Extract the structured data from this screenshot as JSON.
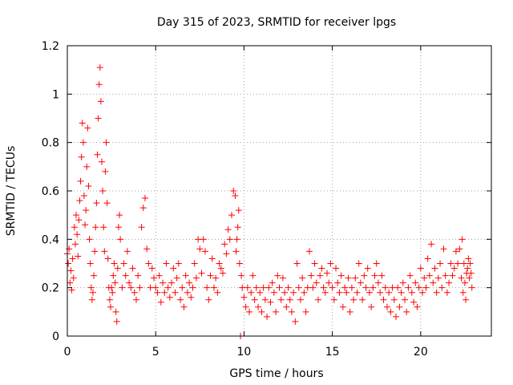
{
  "chart_data": {
    "type": "scatter",
    "title": "Day 315 of 2023, SRMTID for receiver lpgs",
    "xlabel": "GPS time / hours",
    "ylabel": "SRMTID / TECUs",
    "xlim": [
      0,
      24
    ],
    "ylim": [
      0,
      1.2
    ],
    "xticks": [
      0,
      5,
      10,
      15,
      20
    ],
    "yticks": [
      0,
      0.2,
      0.4,
      0.6,
      0.8,
      1,
      1.2
    ],
    "xtick_labels": [
      "0",
      "5",
      "10",
      "15",
      "20"
    ],
    "ytick_labels": [
      "0",
      "0.2",
      "0.4",
      "0.6",
      "0.8",
      "1",
      "1.2"
    ],
    "grid": true,
    "marker": "+",
    "marker_color": "#ff0000",
    "series": [
      {
        "name": "SRMTID",
        "points": [
          [
            0.0,
            0.34
          ],
          [
            0.05,
            0.3
          ],
          [
            0.1,
            0.36
          ],
          [
            0.15,
            0.22
          ],
          [
            0.2,
            0.27
          ],
          [
            0.25,
            0.19
          ],
          [
            0.3,
            0.32
          ],
          [
            0.35,
            0.24
          ],
          [
            0.4,
            0.45
          ],
          [
            0.45,
            0.38
          ],
          [
            0.5,
            0.5
          ],
          [
            0.55,
            0.42
          ],
          [
            0.6,
            0.33
          ],
          [
            0.65,
            0.48
          ],
          [
            0.7,
            0.56
          ],
          [
            0.75,
            0.64
          ],
          [
            0.8,
            0.74
          ],
          [
            0.85,
            0.88
          ],
          [
            0.9,
            0.8
          ],
          [
            0.95,
            0.58
          ],
          [
            1.0,
            0.46
          ],
          [
            1.05,
            0.52
          ],
          [
            1.1,
            0.7
          ],
          [
            1.15,
            0.86
          ],
          [
            1.2,
            0.62
          ],
          [
            1.25,
            0.4
          ],
          [
            1.3,
            0.3
          ],
          [
            1.35,
            0.2
          ],
          [
            1.4,
            0.15
          ],
          [
            1.45,
            0.18
          ],
          [
            1.5,
            0.25
          ],
          [
            1.55,
            0.35
          ],
          [
            1.6,
            0.45
          ],
          [
            1.65,
            0.55
          ],
          [
            1.7,
            0.75
          ],
          [
            1.75,
            0.9
          ],
          [
            1.8,
            1.04
          ],
          [
            1.85,
            1.11
          ],
          [
            1.9,
            0.97
          ],
          [
            1.95,
            0.72
          ],
          [
            2.0,
            0.6
          ],
          [
            2.05,
            0.45
          ],
          [
            2.1,
            0.35
          ],
          [
            2.15,
            0.68
          ],
          [
            2.2,
            0.8
          ],
          [
            2.25,
            0.55
          ],
          [
            2.3,
            0.32
          ],
          [
            2.35,
            0.2
          ],
          [
            2.4,
            0.15
          ],
          [
            2.45,
            0.12
          ],
          [
            2.5,
            0.2
          ],
          [
            2.55,
            0.18
          ],
          [
            2.6,
            0.25
          ],
          [
            2.65,
            0.3
          ],
          [
            2.7,
            0.22
          ],
          [
            2.75,
            0.1
          ],
          [
            2.8,
            0.06
          ],
          [
            2.85,
            0.28
          ],
          [
            2.9,
            0.45
          ],
          [
            2.95,
            0.5
          ],
          [
            3.0,
            0.4
          ],
          [
            3.1,
            0.2
          ],
          [
            3.2,
            0.3
          ],
          [
            3.3,
            0.25
          ],
          [
            3.4,
            0.35
          ],
          [
            3.5,
            0.22
          ],
          [
            3.6,
            0.2
          ],
          [
            3.7,
            0.28
          ],
          [
            3.8,
            0.18
          ],
          [
            3.9,
            0.15
          ],
          [
            4.0,
            0.25
          ],
          [
            4.1,
            0.2
          ],
          [
            4.2,
            0.45
          ],
          [
            4.3,
            0.53
          ],
          [
            4.4,
            0.57
          ],
          [
            4.5,
            0.36
          ],
          [
            4.6,
            0.3
          ],
          [
            4.7,
            0.2
          ],
          [
            4.8,
            0.28
          ],
          [
            4.9,
            0.24
          ],
          [
            5.0,
            0.2
          ],
          [
            5.1,
            0.18
          ],
          [
            5.2,
            0.25
          ],
          [
            5.3,
            0.14
          ],
          [
            5.4,
            0.22
          ],
          [
            5.5,
            0.18
          ],
          [
            5.6,
            0.3
          ],
          [
            5.7,
            0.2
          ],
          [
            5.8,
            0.16
          ],
          [
            5.9,
            0.22
          ],
          [
            6.0,
            0.28
          ],
          [
            6.1,
            0.18
          ],
          [
            6.2,
            0.24
          ],
          [
            6.3,
            0.3
          ],
          [
            6.4,
            0.15
          ],
          [
            6.5,
            0.2
          ],
          [
            6.6,
            0.12
          ],
          [
            6.7,
            0.25
          ],
          [
            6.8,
            0.18
          ],
          [
            6.9,
            0.22
          ],
          [
            7.0,
            0.16
          ],
          [
            7.1,
            0.2
          ],
          [
            7.2,
            0.3
          ],
          [
            7.3,
            0.24
          ],
          [
            7.4,
            0.4
          ],
          [
            7.5,
            0.36
          ],
          [
            7.6,
            0.26
          ],
          [
            7.7,
            0.4
          ],
          [
            7.8,
            0.35
          ],
          [
            7.9,
            0.2
          ],
          [
            8.0,
            0.15
          ],
          [
            8.1,
            0.25
          ],
          [
            8.2,
            0.32
          ],
          [
            8.3,
            0.2
          ],
          [
            8.4,
            0.24
          ],
          [
            8.5,
            0.18
          ],
          [
            8.6,
            0.3
          ],
          [
            8.7,
            0.28
          ],
          [
            8.8,
            0.26
          ],
          [
            8.9,
            0.38
          ],
          [
            9.0,
            0.34
          ],
          [
            9.1,
            0.44
          ],
          [
            9.2,
            0.4
          ],
          [
            9.3,
            0.5
          ],
          [
            9.4,
            0.6
          ],
          [
            9.5,
            0.58
          ],
          [
            9.55,
            0.35
          ],
          [
            9.6,
            0.4
          ],
          [
            9.65,
            0.45
          ],
          [
            9.7,
            0.52
          ],
          [
            9.75,
            0.3
          ],
          [
            9.8,
            0.0
          ],
          [
            9.85,
            0.25
          ],
          [
            9.9,
            0.2
          ],
          [
            10.0,
            0.16
          ],
          [
            10.1,
            0.12
          ],
          [
            10.2,
            0.2
          ],
          [
            10.3,
            0.1
          ],
          [
            10.4,
            0.18
          ],
          [
            10.5,
            0.25
          ],
          [
            10.6,
            0.15
          ],
          [
            10.7,
            0.2
          ],
          [
            10.8,
            0.12
          ],
          [
            10.9,
            0.18
          ],
          [
            11.0,
            0.1
          ],
          [
            11.1,
            0.2
          ],
          [
            11.2,
            0.15
          ],
          [
            11.3,
            0.08
          ],
          [
            11.4,
            0.2
          ],
          [
            11.5,
            0.14
          ],
          [
            11.6,
            0.22
          ],
          [
            11.7,
            0.18
          ],
          [
            11.8,
            0.1
          ],
          [
            11.9,
            0.25
          ],
          [
            12.0,
            0.2
          ],
          [
            12.1,
            0.15
          ],
          [
            12.2,
            0.24
          ],
          [
            12.3,
            0.18
          ],
          [
            12.4,
            0.12
          ],
          [
            12.5,
            0.2
          ],
          [
            12.6,
            0.15
          ],
          [
            12.7,
            0.1
          ],
          [
            12.8,
            0.18
          ],
          [
            12.9,
            0.06
          ],
          [
            13.0,
            0.3
          ],
          [
            13.1,
            0.2
          ],
          [
            13.2,
            0.15
          ],
          [
            13.3,
            0.24
          ],
          [
            13.4,
            0.18
          ],
          [
            13.5,
            0.1
          ],
          [
            13.6,
            0.2
          ],
          [
            13.7,
            0.35
          ],
          [
            13.8,
            0.25
          ],
          [
            13.9,
            0.2
          ],
          [
            14.0,
            0.3
          ],
          [
            14.1,
            0.22
          ],
          [
            14.2,
            0.15
          ],
          [
            14.3,
            0.25
          ],
          [
            14.4,
            0.28
          ],
          [
            14.5,
            0.2
          ],
          [
            14.6,
            0.18
          ],
          [
            14.7,
            0.26
          ],
          [
            14.8,
            0.22
          ],
          [
            14.9,
            0.3
          ],
          [
            15.0,
            0.2
          ],
          [
            15.1,
            0.15
          ],
          [
            15.2,
            0.28
          ],
          [
            15.3,
            0.22
          ],
          [
            15.4,
            0.18
          ],
          [
            15.5,
            0.25
          ],
          [
            15.6,
            0.12
          ],
          [
            15.7,
            0.2
          ],
          [
            15.8,
            0.18
          ],
          [
            15.9,
            0.24
          ],
          [
            16.0,
            0.1
          ],
          [
            16.1,
            0.2
          ],
          [
            16.2,
            0.15
          ],
          [
            16.3,
            0.24
          ],
          [
            16.4,
            0.18
          ],
          [
            16.5,
            0.3
          ],
          [
            16.6,
            0.22
          ],
          [
            16.7,
            0.15
          ],
          [
            16.8,
            0.25
          ],
          [
            16.9,
            0.2
          ],
          [
            17.0,
            0.28
          ],
          [
            17.1,
            0.18
          ],
          [
            17.2,
            0.12
          ],
          [
            17.3,
            0.2
          ],
          [
            17.4,
            0.25
          ],
          [
            17.5,
            0.3
          ],
          [
            17.6,
            0.22
          ],
          [
            17.7,
            0.18
          ],
          [
            17.8,
            0.25
          ],
          [
            17.9,
            0.15
          ],
          [
            18.0,
            0.2
          ],
          [
            18.1,
            0.12
          ],
          [
            18.2,
            0.18
          ],
          [
            18.3,
            0.1
          ],
          [
            18.4,
            0.2
          ],
          [
            18.5,
            0.15
          ],
          [
            18.6,
            0.08
          ],
          [
            18.7,
            0.2
          ],
          [
            18.8,
            0.12
          ],
          [
            18.9,
            0.18
          ],
          [
            19.0,
            0.22
          ],
          [
            19.1,
            0.15
          ],
          [
            19.2,
            0.1
          ],
          [
            19.3,
            0.2
          ],
          [
            19.4,
            0.25
          ],
          [
            19.5,
            0.18
          ],
          [
            19.6,
            0.14
          ],
          [
            19.7,
            0.22
          ],
          [
            19.8,
            0.12
          ],
          [
            19.9,
            0.2
          ],
          [
            20.0,
            0.28
          ],
          [
            20.1,
            0.18
          ],
          [
            20.2,
            0.24
          ],
          [
            20.3,
            0.2
          ],
          [
            20.4,
            0.32
          ],
          [
            20.5,
            0.25
          ],
          [
            20.6,
            0.38
          ],
          [
            20.7,
            0.22
          ],
          [
            20.8,
            0.28
          ],
          [
            20.9,
            0.18
          ],
          [
            21.0,
            0.24
          ],
          [
            21.1,
            0.3
          ],
          [
            21.2,
            0.2
          ],
          [
            21.3,
            0.36
          ],
          [
            21.4,
            0.25
          ],
          [
            21.5,
            0.18
          ],
          [
            21.6,
            0.22
          ],
          [
            21.7,
            0.3
          ],
          [
            21.8,
            0.25
          ],
          [
            21.9,
            0.28
          ],
          [
            22.0,
            0.35
          ],
          [
            22.1,
            0.3
          ],
          [
            22.2,
            0.36
          ],
          [
            22.3,
            0.24
          ],
          [
            22.35,
            0.4
          ],
          [
            22.4,
            0.18
          ],
          [
            22.45,
            0.3
          ],
          [
            22.5,
            0.22
          ],
          [
            22.55,
            0.15
          ],
          [
            22.6,
            0.26
          ],
          [
            22.65,
            0.28
          ],
          [
            22.7,
            0.32
          ],
          [
            22.75,
            0.24
          ],
          [
            22.8,
            0.3
          ],
          [
            22.85,
            0.26
          ],
          [
            22.9,
            0.2
          ]
        ]
      }
    ]
  }
}
